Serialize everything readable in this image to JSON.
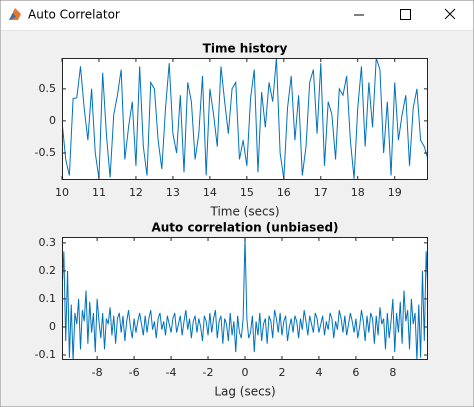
{
  "window": {
    "title": "Auto Correlator"
  },
  "chart_data": [
    {
      "type": "line",
      "title": "Time history",
      "xlabel": "Time (secs)",
      "color": "#0072bd",
      "xlim": [
        10,
        19.9
      ],
      "ylim": [
        -0.92,
        0.98
      ],
      "xticks": [
        10,
        11,
        12,
        13,
        14,
        15,
        16,
        17,
        18,
        19
      ],
      "yticks": [
        -0.5,
        0,
        0.5
      ],
      "x": [
        10,
        10.1,
        10.2,
        10.3,
        10.4,
        10.5,
        10.6,
        10.7,
        10.8,
        10.9,
        11,
        11.1,
        11.2,
        11.3,
        11.4,
        11.5,
        11.6,
        11.7,
        11.8,
        11.9,
        12,
        12.1,
        12.2,
        12.3,
        12.4,
        12.5,
        12.6,
        12.7,
        12.8,
        12.9,
        13,
        13.1,
        13.2,
        13.3,
        13.4,
        13.5,
        13.6,
        13.7,
        13.8,
        13.9,
        14,
        14.1,
        14.2,
        14.3,
        14.4,
        14.5,
        14.6,
        14.7,
        14.8,
        14.9,
        15,
        15.1,
        15.2,
        15.3,
        15.4,
        15.5,
        15.6,
        15.7,
        15.8,
        15.9,
        16,
        16.1,
        16.2,
        16.3,
        16.4,
        16.5,
        16.6,
        16.7,
        16.8,
        16.9,
        17,
        17.1,
        17.2,
        17.3,
        17.4,
        17.5,
        17.6,
        17.7,
        17.8,
        17.9,
        18,
        18.1,
        18.2,
        18.3,
        18.4,
        18.5,
        18.6,
        18.7,
        18.8,
        18.9,
        19,
        19.1,
        19.2,
        19.3,
        19.4,
        19.5,
        19.6,
        19.7,
        19.8,
        19.9
      ],
      "values": [
        0.0,
        -0.6,
        -0.85,
        0.35,
        0.36,
        0.85,
        0.2,
        -0.3,
        0.5,
        -0.5,
        -0.9,
        0.75,
        -0.2,
        -0.88,
        0.1,
        0.4,
        0.8,
        -0.6,
        -0.1,
        0.3,
        -0.7,
        0.85,
        -0.4,
        -0.85,
        0.6,
        0.5,
        -0.3,
        -0.75,
        0.2,
        0.9,
        -0.2,
        -0.5,
        0.4,
        -0.8,
        0.6,
        0.3,
        -0.6,
        -0.2,
        0.7,
        -0.85,
        0.5,
        0.1,
        -0.4,
        0.85,
        0.3,
        -0.2,
        0.5,
        0.6,
        -0.6,
        -0.3,
        -0.7,
        0.35,
        0.8,
        -0.8,
        0.45,
        -0.1,
        0.6,
        0.3,
        0.98,
        -0.5,
        -0.9,
        0.2,
        0.7,
        -0.3,
        0.4,
        -0.85,
        -0.4,
        0.6,
        0.8,
        -0.2,
        0.9,
        -0.7,
        0.3,
        0.1,
        -0.6,
        0.5,
        0.4,
        0.7,
        -0.3,
        -0.9,
        0.2,
        0.85,
        -0.4,
        0.6,
        -0.1,
        0.98,
        0.8,
        -0.5,
        0.3,
        -0.85,
        0.6,
        -0.3,
        0.1,
        0.4,
        -0.7,
        0.2,
        0.5,
        -0.3,
        -0.4,
        -0.6
      ]
    },
    {
      "type": "line",
      "title": "Auto correlation (unbiased)",
      "xlabel": "Lag (secs)",
      "color": "#0072bd",
      "xlim": [
        -9.9,
        9.9
      ],
      "ylim": [
        -0.118,
        0.321
      ],
      "xticks": [
        -8,
        -6,
        -4,
        -2,
        0,
        2,
        4,
        6,
        8
      ],
      "yticks": [
        -0.1,
        0,
        0.1,
        0.2,
        0.3
      ],
      "x": [
        -9.9,
        -9.8,
        -9.7,
        -9.6,
        -9.5,
        -9.4,
        -9.3,
        -9.2,
        -9.1,
        -9,
        -8.9,
        -8.8,
        -8.7,
        -8.6,
        -8.5,
        -8.4,
        -8.3,
        -8.2,
        -8.1,
        -8,
        -7.9,
        -7.8,
        -7.7,
        -7.6,
        -7.5,
        -7.4,
        -7.3,
        -7.2,
        -7.1,
        -7,
        -6.9,
        -6.8,
        -6.7,
        -6.6,
        -6.5,
        -6.4,
        -6.3,
        -6.2,
        -6.1,
        -6,
        -5.9,
        -5.8,
        -5.7,
        -5.6,
        -5.5,
        -5.4,
        -5.3,
        -5.2,
        -5.1,
        -5,
        -4.9,
        -4.8,
        -4.7,
        -4.6,
        -4.5,
        -4.4,
        -4.3,
        -4.2,
        -4.1,
        -4,
        -3.9,
        -3.8,
        -3.7,
        -3.6,
        -3.5,
        -3.4,
        -3.3,
        -3.2,
        -3.1,
        -3,
        -2.9,
        -2.8,
        -2.7,
        -2.6,
        -2.5,
        -2.4,
        -2.3,
        -2.2,
        -2.1,
        -2,
        -1.9,
        -1.8,
        -1.7,
        -1.6,
        -1.5,
        -1.4,
        -1.3,
        -1.2,
        -1.1,
        -1,
        -0.9,
        -0.8,
        -0.7,
        -0.6,
        -0.5,
        -0.4,
        -0.3,
        -0.2,
        -0.1,
        0,
        0.1,
        0.2,
        0.3,
        0.4,
        0.5,
        0.6,
        0.7,
        0.8,
        0.9,
        1,
        1.1,
        1.2,
        1.3,
        1.4,
        1.5,
        1.6,
        1.7,
        1.8,
        1.9,
        2,
        2.1,
        2.2,
        2.3,
        2.4,
        2.5,
        2.6,
        2.7,
        2.8,
        2.9,
        3,
        3.1,
        3.2,
        3.3,
        3.4,
        3.5,
        3.6,
        3.7,
        3.8,
        3.9,
        4,
        4.1,
        4.2,
        4.3,
        4.4,
        4.5,
        4.6,
        4.7,
        4.8,
        4.9,
        5,
        5.1,
        5.2,
        5.3,
        5.4,
        5.5,
        5.6,
        5.7,
        5.8,
        5.9,
        6,
        6.1,
        6.2,
        6.3,
        6.4,
        6.5,
        6.6,
        6.7,
        6.8,
        6.9,
        7,
        7.1,
        7.2,
        7.3,
        7.4,
        7.5,
        7.6,
        7.7,
        7.8,
        7.9,
        8,
        8.1,
        8.2,
        8.3,
        8.4,
        8.5,
        8.6,
        8.7,
        8.8,
        8.9,
        9,
        9.1,
        9.2,
        9.3,
        9.4,
        9.5,
        9.6,
        9.7,
        9.8,
        9.9
      ],
      "values": [
        0.12,
        0.27,
        -0.05,
        0.2,
        -0.11,
        0.08,
        -0.12,
        0.05,
        0.01,
        0.1,
        -0.08,
        0.06,
        0.02,
        0.13,
        -0.06,
        0.09,
        -0.02,
        0.05,
        -0.09,
        0.1,
        0.02,
        -0.04,
        0.05,
        -0.08,
        0.03,
        0.01,
        0.07,
        -0.03,
        0.04,
        -0.06,
        0.03,
        0.05,
        -0.02,
        0.04,
        -0.05,
        0.02,
        0.06,
        0,
        -0.04,
        0.03,
        -0.02,
        0.02,
        0.05,
        0.01,
        -0.03,
        0.04,
        -0.02,
        0.03,
        0.06,
        -0.01,
        0.02,
        -0.04,
        0.03,
        0.05,
        -0.01,
        0.02,
        -0.03,
        0.04,
        0.01,
        -0.02,
        0.03,
        0.05,
        -0.02,
        0.01,
        0.04,
        -0.03,
        0.02,
        0.06,
        -0.01,
        0.03,
        -0.04,
        0.02,
        0.04,
        -0.02,
        0.03,
        0,
        -0.05,
        0.04,
        0.02,
        -0.03,
        0.05,
        -0.02,
        0.03,
        0.06,
        -0.04,
        0.02,
        0.04,
        -0.06,
        0.03,
        0.01,
        -0.05,
        0.05,
        -0.03,
        0.02,
        -0.09,
        0.04,
        -0.02,
        -0.04,
        0.03,
        0.32,
        0.03,
        -0.04,
        -0.02,
        0.04,
        -0.09,
        0.02,
        -0.03,
        0.05,
        -0.05,
        0.01,
        0.03,
        -0.06,
        0.04,
        0.02,
        -0.04,
        0.06,
        0.03,
        -0.02,
        0.05,
        -0.03,
        0.02,
        0.04,
        -0.05,
        0,
        0.03,
        -0.02,
        0.04,
        0.02,
        -0.04,
        0.03,
        -0.01,
        0.06,
        0.02,
        -0.03,
        0.04,
        0.01,
        -0.02,
        0.05,
        0.03,
        -0.02,
        0.01,
        0.04,
        -0.03,
        0.02,
        -0.01,
        0.05,
        0.03,
        -0.04,
        0.02,
        -0.01,
        0.06,
        0.03,
        -0.02,
        0.04,
        -0.03,
        0.01,
        0.05,
        0.02,
        -0.02,
        0.03,
        -0.04,
        0,
        0.06,
        0.02,
        -0.05,
        0.04,
        -0.02,
        0.05,
        0.03,
        -0.06,
        0.04,
        -0.03,
        0.07,
        0.01,
        0.03,
        -0.08,
        0.05,
        -0.04,
        0.02,
        0.1,
        -0.09,
        0.05,
        -0.02,
        0.09,
        -0.06,
        0.13,
        0.02,
        0.06,
        -0.08,
        0.1,
        0.01,
        0.05,
        -0.12,
        0.08,
        -0.11,
        0.2,
        -0.05,
        0.27,
        0.12
      ]
    }
  ]
}
